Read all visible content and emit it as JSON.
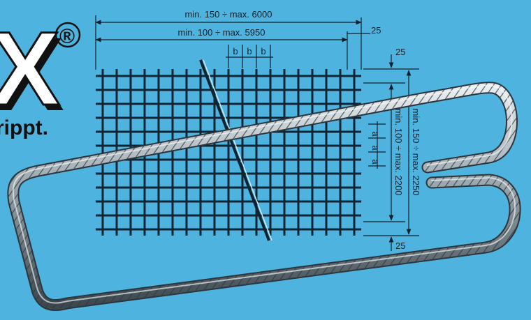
{
  "brand": {
    "logo_letter": "X",
    "registered_mark": "®",
    "tagline_fragment": "rippt."
  },
  "dimensions": {
    "total_length": "min. 150 ÷ max. 6000",
    "inner_length": "min. 100 ÷ max. 5950",
    "length_overhang": "25",
    "spacing_b": "b",
    "spacing_a": "a",
    "top_overhang": "25",
    "bottom_overhang": "25",
    "inner_width": "min. 100 ÷ max. 2200",
    "total_width": "min. 150 ÷ max. 2250"
  },
  "colors": {
    "background": "#4fb3df",
    "mesh": "#102634",
    "bar_steel": "#8d9aa2",
    "logo_fill": "#ffffff"
  }
}
